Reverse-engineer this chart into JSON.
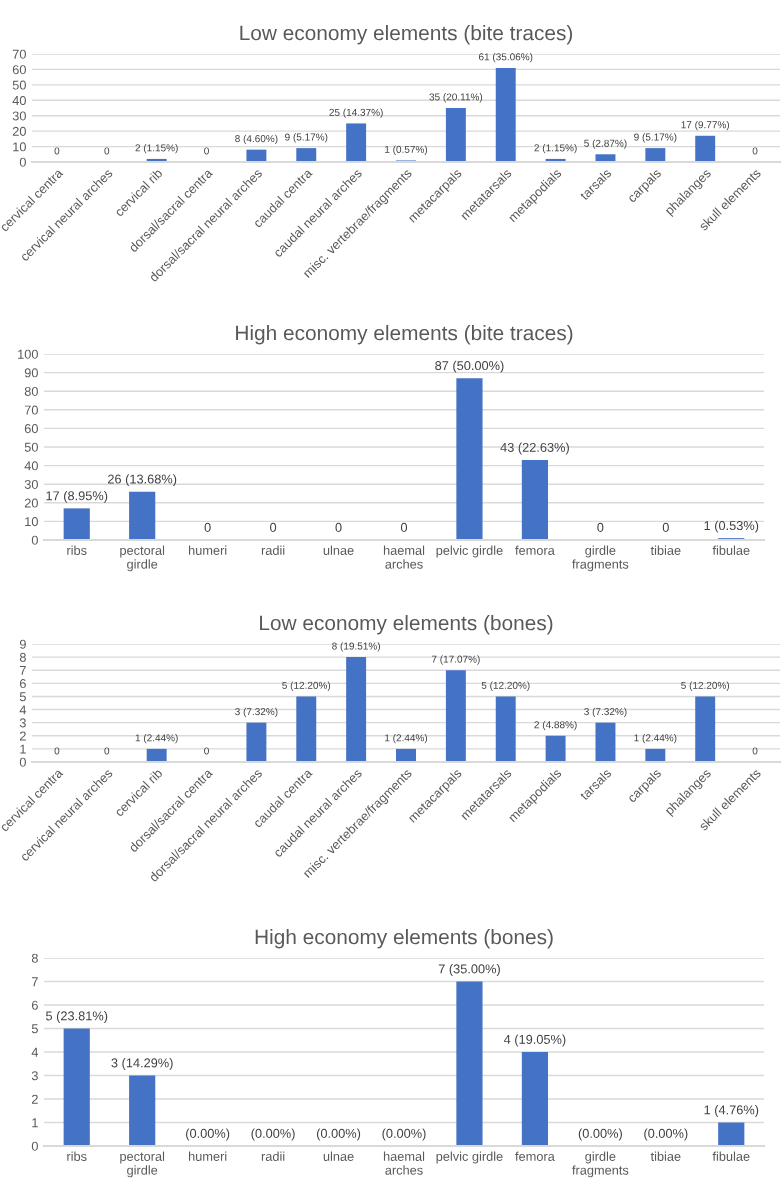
{
  "chart_data": [
    {
      "type": "bar",
      "title": "Low economy elements (bite traces)",
      "categories": [
        "cervical centra",
        "cervical neural arches",
        "cervical rib",
        "dorsal/sacral centra",
        "dorsal/sacral neural arches",
        "caudal centra",
        "caudal neural arches",
        "misc. vertebrae/fragments",
        "metacarpals",
        "metatarsals",
        "metapodials",
        "tarsals",
        "carpals",
        "phalanges",
        "skull elements"
      ],
      "values": [
        0,
        0,
        2,
        0,
        8,
        9,
        25,
        1,
        35,
        61,
        2,
        5,
        9,
        17,
        0
      ],
      "value_labels": [
        "0",
        "0",
        "2 (1.15%)",
        "0",
        "8 (4.60%)",
        "9 (5.17%)",
        "25 (14.37%)",
        "1 (0.57%)",
        "35 (20.11%)",
        "61 (35.06%)",
        "2 (1.15%)",
        "5 (2.87%)",
        "9 (5.17%)",
        "17 (9.77%)",
        "0"
      ],
      "color": "#4472c4",
      "ylim": [
        0,
        70
      ],
      "yticks": [
        0,
        10,
        20,
        30,
        40,
        50,
        60,
        70
      ],
      "grid": "y",
      "legend": false
    },
    {
      "type": "bar",
      "title": "High economy elements (bite traces)",
      "categories": [
        "ribs",
        "pectoral\ngirdle",
        "humeri",
        "radii",
        "ulnae",
        "haemal\narches",
        "pelvic girdle",
        "femora",
        "girdle\nfragments",
        "tibiae",
        "fibulae"
      ],
      "values": [
        17,
        26,
        0,
        0,
        0,
        0,
        87,
        43,
        0,
        0,
        1
      ],
      "value_labels": [
        "17 (8.95%)",
        "26 (13.68%)",
        "0",
        "0",
        "0",
        "0",
        "87 (50.00%)",
        "43 (22.63%)",
        "0",
        "0",
        "1 (0.53%)"
      ],
      "color": "#4472c4",
      "ylim": [
        0,
        100
      ],
      "yticks": [
        0,
        10,
        20,
        30,
        40,
        50,
        60,
        70,
        80,
        90,
        100
      ],
      "grid": "y",
      "legend": false
    },
    {
      "type": "bar",
      "title": "Low economy elements (bones)",
      "categories": [
        "cervical centra",
        "cervical neural arches",
        "cervical rib",
        "dorsal/sacral centra",
        "dorsal/sacral neural arches",
        "caudal centra",
        "caudal neural arches",
        "misc. vertebrae/fragments",
        "metacarpals",
        "metatarsals",
        "metapodials",
        "tarsals",
        "carpals",
        "phalanges",
        "skull elements"
      ],
      "values": [
        0,
        0,
        1,
        0,
        3,
        5,
        8,
        1,
        7,
        5,
        2,
        3,
        1,
        5,
        0
      ],
      "value_labels": [
        "0",
        "0",
        "1 (2.44%)",
        "0",
        "3 (7.32%)",
        "5 (12.20%)",
        "8 (19.51%)",
        "1 (2.44%)",
        "7 (17.07%)",
        "5 (12.20%)",
        "2 (4.88%)",
        "3 (7.32%)",
        "1 (2.44%)",
        "5 (12.20%)",
        "0"
      ],
      "color": "#4472c4",
      "ylim": [
        0,
        9
      ],
      "yticks": [
        0,
        1,
        2,
        3,
        4,
        5,
        6,
        7,
        8,
        9
      ],
      "grid": "y",
      "legend": false
    },
    {
      "type": "bar",
      "title": "High economy elements (bones)",
      "categories": [
        "ribs",
        "pectoral\ngirdle",
        "humeri",
        "radii",
        "ulnae",
        "haemal\narches",
        "pelvic girdle",
        "femora",
        "girdle\nfragments",
        "tibiae",
        "fibulae"
      ],
      "values": [
        5,
        3,
        0,
        0,
        0,
        0,
        7,
        4,
        0,
        0,
        1
      ],
      "value_labels": [
        "5 (23.81%)",
        "3 (14.29%)",
        "(0.00%)",
        "(0.00%)",
        "(0.00%)",
        "(0.00%)",
        "7 (35.00%)",
        "4 (19.05%)",
        "(0.00%)",
        "(0.00%)",
        "1 (4.76%)"
      ],
      "color": "#4472c4",
      "ylim": [
        0,
        8
      ],
      "yticks": [
        0,
        1,
        2,
        3,
        4,
        5,
        6,
        7,
        8
      ],
      "grid": "y",
      "legend": false
    }
  ]
}
